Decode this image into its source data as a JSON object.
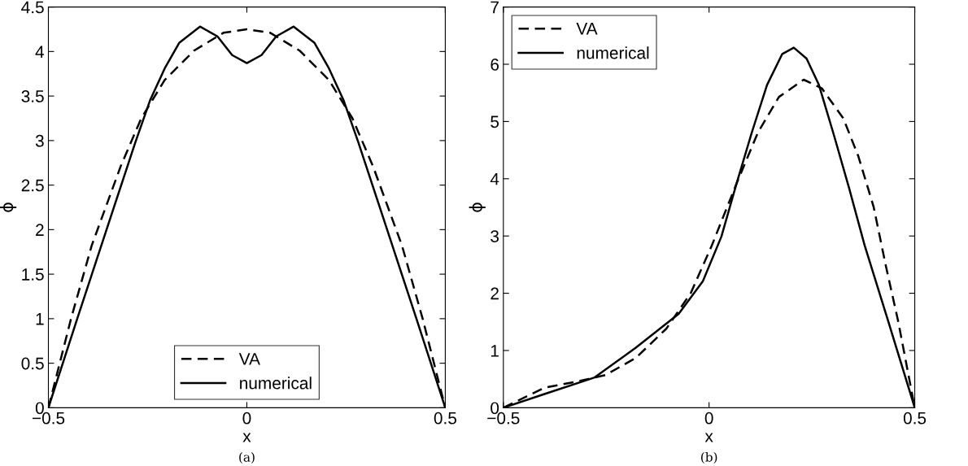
{
  "chart_data": [
    {
      "type": "line",
      "xlabel": "x",
      "ylabel": "ϕ",
      "annotations": [
        "(a)"
      ],
      "legend": "bottom",
      "grid": false,
      "xlim": [
        -0.5,
        0.5
      ],
      "xticks": [
        {
          "value": -0.5,
          "label": "−0.5"
        },
        0,
        0.5
      ],
      "ylim": [
        0,
        4.5
      ],
      "yticks": [
        0,
        0.5,
        1,
        1.5,
        2,
        2.5,
        3,
        3.5,
        4,
        4.5
      ],
      "series": [
        {
          "name": "VA",
          "color": "#000000",
          "line_style": "dashed",
          "x": [
            -0.5,
            -0.443,
            -0.391,
            -0.318,
            -0.266,
            -0.207,
            -0.133,
            -0.059,
            0,
            0.059,
            0.133,
            0.207,
            0.266,
            0.318,
            0.391,
            0.443,
            0.5
          ],
          "values": [
            0,
            1.0,
            1.82,
            2.71,
            3.25,
            3.68,
            4.01,
            4.21,
            4.25,
            4.21,
            4.01,
            3.68,
            3.25,
            2.71,
            1.82,
            1.0,
            0
          ]
        },
        {
          "name": "numerical",
          "color": "#000000",
          "line_style": "solid",
          "x": [
            -0.5,
            -0.428,
            -0.355,
            -0.281,
            -0.244,
            -0.207,
            -0.17,
            -0.118,
            -0.074,
            -0.037,
            0,
            0.037,
            0.074,
            0.118,
            0.17,
            0.207,
            0.244,
            0.281,
            0.355,
            0.428,
            0.5
          ],
          "values": [
            0,
            0.99,
            1.98,
            2.98,
            3.45,
            3.81,
            4.1,
            4.28,
            4.17,
            3.96,
            3.87,
            3.96,
            4.17,
            4.28,
            4.1,
            3.81,
            3.45,
            2.98,
            1.98,
            0.99,
            0
          ]
        }
      ]
    },
    {
      "type": "line",
      "xlabel": "x",
      "ylabel": "ϕ",
      "annotations": [
        "(b)"
      ],
      "legend": "top left",
      "grid": false,
      "xlim": [
        -0.5,
        0.5
      ],
      "xticks": [
        {
          "value": -0.5,
          "label": "−0.5"
        },
        0,
        0.5
      ],
      "ylim": [
        0,
        7
      ],
      "yticks": [
        0,
        1,
        2,
        3,
        4,
        5,
        6,
        7
      ],
      "series": [
        {
          "name": "VA",
          "color": "#000000",
          "line_style": "dashed",
          "x": [
            -0.5,
            -0.4,
            -0.326,
            -0.252,
            -0.178,
            -0.104,
            -0.044,
            0.007,
            0.067,
            0.119,
            0.17,
            0.23,
            0.274,
            0.326,
            0.363,
            0.4,
            0.43,
            0.46,
            0.5
          ],
          "values": [
            0,
            0.35,
            0.45,
            0.57,
            0.87,
            1.38,
            2.01,
            2.84,
            3.92,
            4.81,
            5.43,
            5.73,
            5.58,
            5.06,
            4.39,
            3.51,
            2.47,
            1.5,
            0
          ]
        },
        {
          "name": "numerical",
          "color": "#000000",
          "line_style": "solid",
          "x": [
            -0.5,
            -0.4,
            -0.278,
            -0.178,
            -0.074,
            -0.015,
            0.03,
            0.067,
            0.104,
            0.141,
            0.178,
            0.206,
            0.237,
            0.267,
            0.304,
            0.341,
            0.378,
            0.433,
            0.5
          ],
          "values": [
            0,
            0.24,
            0.53,
            1.05,
            1.64,
            2.21,
            2.99,
            3.92,
            4.81,
            5.64,
            6.18,
            6.29,
            6.1,
            5.64,
            4.75,
            3.82,
            2.84,
            1.57,
            0
          ]
        }
      ]
    }
  ]
}
